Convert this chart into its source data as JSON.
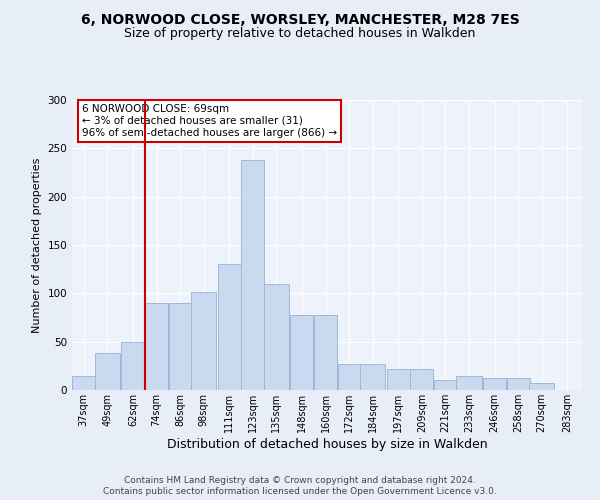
{
  "title1": "6, NORWOOD CLOSE, WORSLEY, MANCHESTER, M28 7ES",
  "title2": "Size of property relative to detached houses in Walkden",
  "xlabel": "Distribution of detached houses by size in Walkden",
  "ylabel": "Number of detached properties",
  "categories": [
    "37sqm",
    "49sqm",
    "62sqm",
    "74sqm",
    "86sqm",
    "98sqm",
    "111sqm",
    "123sqm",
    "135sqm",
    "148sqm",
    "160sqm",
    "172sqm",
    "184sqm",
    "197sqm",
    "209sqm",
    "221sqm",
    "233sqm",
    "246sqm",
    "258sqm",
    "270sqm",
    "283sqm"
  ],
  "bar_heights": [
    15,
    38,
    50,
    90,
    90,
    101,
    130,
    238,
    110,
    78,
    78,
    27,
    27,
    22,
    22,
    10,
    15,
    12,
    12,
    7
  ],
  "bar_color": "#c9d9f0",
  "bar_edge_color": "#a0b8d8",
  "vline_x_idx": 2,
  "vline_color": "#cc0000",
  "annotation_text": "6 NORWOOD CLOSE: 69sqm\n← 3% of detached houses are smaller (31)\n96% of semi-detached houses are larger (866) →",
  "annotation_box_color": "#ffffff",
  "annotation_box_edge_color": "#cc0000",
  "ylim": [
    0,
    300
  ],
  "yticks": [
    0,
    50,
    100,
    150,
    200,
    250,
    300
  ],
  "footer1": "Contains HM Land Registry data © Crown copyright and database right 2024.",
  "footer2": "Contains public sector information licensed under the Open Government Licence v3.0.",
  "bg_color": "#e8eef8",
  "plot_bg_color": "#edf2fb",
  "grid_color": "#ffffff",
  "title1_fontsize": 10,
  "title2_fontsize": 9,
  "xlabel_fontsize": 9,
  "ylabel_fontsize": 8,
  "tick_fontsize": 7,
  "footer_fontsize": 6.5
}
